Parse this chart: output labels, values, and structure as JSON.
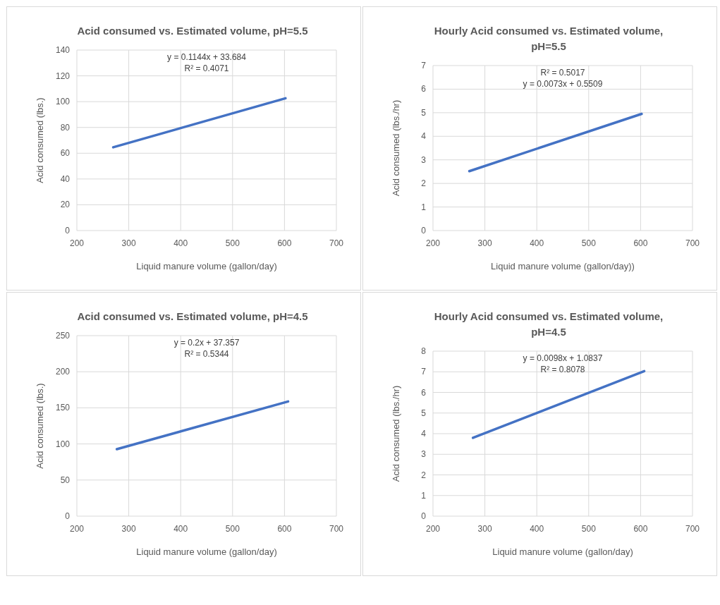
{
  "chart_data": [
    {
      "type": "line",
      "title": "Acid consumed vs. Estimated volume, pH=5.5",
      "xlabel": "Liquid manure volume (gallon/day)",
      "ylabel": "Acid consumed (lbs.)",
      "xlim": [
        200,
        700
      ],
      "xticks": [
        200,
        300,
        400,
        500,
        600,
        700
      ],
      "ylim": [
        0,
        140
      ],
      "yticks": [
        0,
        20,
        40,
        60,
        80,
        100,
        120,
        140
      ],
      "grid": true,
      "annotations": [
        "y = 0.1144x + 33.684",
        "R² = 0.4071"
      ],
      "series": [
        {
          "x": [
            270,
            602
          ],
          "values": [
            64.6,
            102.6
          ],
          "color": "#4472c4"
        }
      ]
    },
    {
      "type": "line",
      "title": "Hourly Acid consumed vs. Estimated volume, pH=5.5",
      "xlabel": "Liquid manure volume (gallon/day))",
      "ylabel": "Acid consumed (lbs./hr)",
      "xlim": [
        200,
        700
      ],
      "xticks": [
        200,
        300,
        400,
        500,
        600,
        700
      ],
      "ylim": [
        0,
        7
      ],
      "yticks": [
        0,
        1,
        2,
        3,
        4,
        5,
        6,
        7
      ],
      "grid": true,
      "annotations": [
        "R² = 0.5017",
        "y = 0.0073x + 0.5509"
      ],
      "series": [
        {
          "x": [
            270,
            602
          ],
          "values": [
            2.52,
            4.95
          ],
          "color": "#4472c4"
        }
      ]
    },
    {
      "type": "line",
      "title": "Acid consumed vs. Estimated volume, pH=4.5",
      "xlabel": "Liquid manure volume (gallon/day)",
      "ylabel": "Acid consumed (lbs.)",
      "xlim": [
        200,
        700
      ],
      "xticks": [
        200,
        300,
        400,
        500,
        600,
        700
      ],
      "ylim": [
        0,
        250
      ],
      "yticks": [
        0,
        50,
        100,
        150,
        200,
        250
      ],
      "grid": true,
      "annotations": [
        "y = 0.2x + 37.357",
        "R² = 0.5344"
      ],
      "series": [
        {
          "x": [
            277,
            607
          ],
          "values": [
            92.8,
            158.8
          ],
          "color": "#4472c4"
        }
      ]
    },
    {
      "type": "line",
      "title": "Hourly Acid consumed vs. Estimated volume, pH=4.5",
      "xlabel": "Liquid manure volume (gallon/day)",
      "ylabel": "Acid consumed (lbs./hr)",
      "xlim": [
        200,
        700
      ],
      "xticks": [
        200,
        300,
        400,
        500,
        600,
        700
      ],
      "ylim": [
        0,
        8
      ],
      "yticks": [
        0,
        1,
        2,
        3,
        4,
        5,
        6,
        7,
        8
      ],
      "grid": true,
      "annotations": [
        "y = 0.0098x + 1.0837",
        "R² = 0.8078"
      ],
      "series": [
        {
          "x": [
            277,
            607
          ],
          "values": [
            3.8,
            7.03
          ],
          "color": "#4472c4"
        }
      ]
    }
  ]
}
